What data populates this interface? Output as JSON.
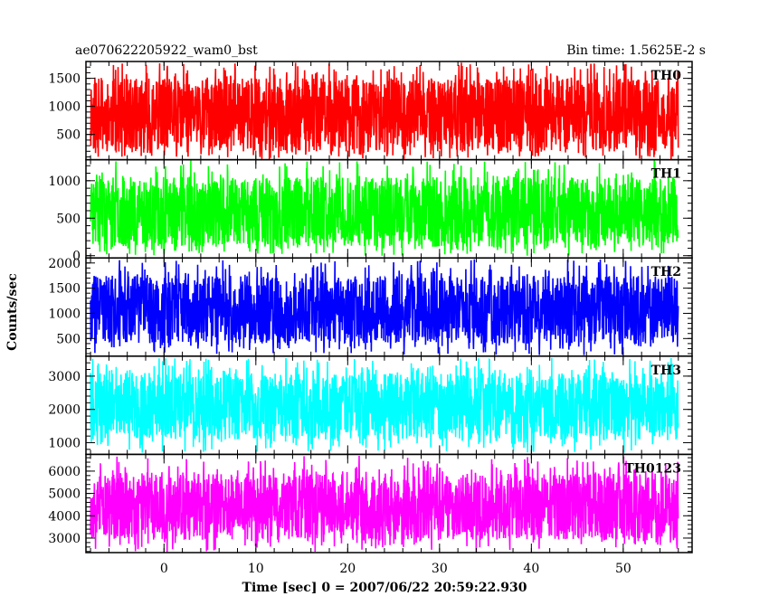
{
  "header": {
    "source": "ae070622205922_wam0_bst",
    "bin_time": "Bin time: 1.5625E-2 s"
  },
  "chart_data": {
    "type": "line",
    "shared_x": {
      "label": "Time [sec] 0 = 2007/06/22 20:59:22.930",
      "range": [
        -8,
        56
      ],
      "lim": [
        -8.5,
        57.5
      ],
      "ticks": [
        0,
        10,
        20,
        30,
        40,
        50
      ],
      "minor_step": 2
    },
    "ylabel": "Counts/sec",
    "panels": [
      {
        "name": "TH0",
        "color": "#ff0000",
        "ylim": [
          50,
          1800
        ],
        "yticks": [
          500,
          1000,
          1500
        ],
        "minor_step": 100,
        "band": [
          200,
          1500
        ],
        "low_spike": 60,
        "high_spike": 1780,
        "seed": 11
      },
      {
        "name": "TH1",
        "color": "#00ff00",
        "ylim": [
          -30,
          1280
        ],
        "yticks": [
          0,
          500,
          1000
        ],
        "minor_step": 100,
        "band": [
          120,
          1050
        ],
        "low_spike": 0,
        "high_spike": 1270,
        "seed": 23
      },
      {
        "name": "TH2",
        "color": "#0000ff",
        "ylim": [
          150,
          2100
        ],
        "yticks": [
          500,
          1000,
          1500,
          2000
        ],
        "minor_step": 100,
        "band": [
          400,
          1750
        ],
        "low_spike": 170,
        "high_spike": 2080,
        "seed": 37
      },
      {
        "name": "TH3",
        "color": "#00ffff",
        "ylim": [
          650,
          3600
        ],
        "yticks": [
          1000,
          2000,
          3000
        ],
        "minor_step": 200,
        "band": [
          1100,
          3100
        ],
        "low_spike": 700,
        "high_spike": 3550,
        "seed": 41
      },
      {
        "name": "TH0123",
        "color": "#ff00ff",
        "ylim": [
          2350,
          6750
        ],
        "yticks": [
          3000,
          4000,
          5000,
          6000
        ],
        "minor_step": 200,
        "band": [
          2900,
          5900
        ],
        "low_spike": 2380,
        "high_spike": 6700,
        "seed": 53
      }
    ]
  }
}
